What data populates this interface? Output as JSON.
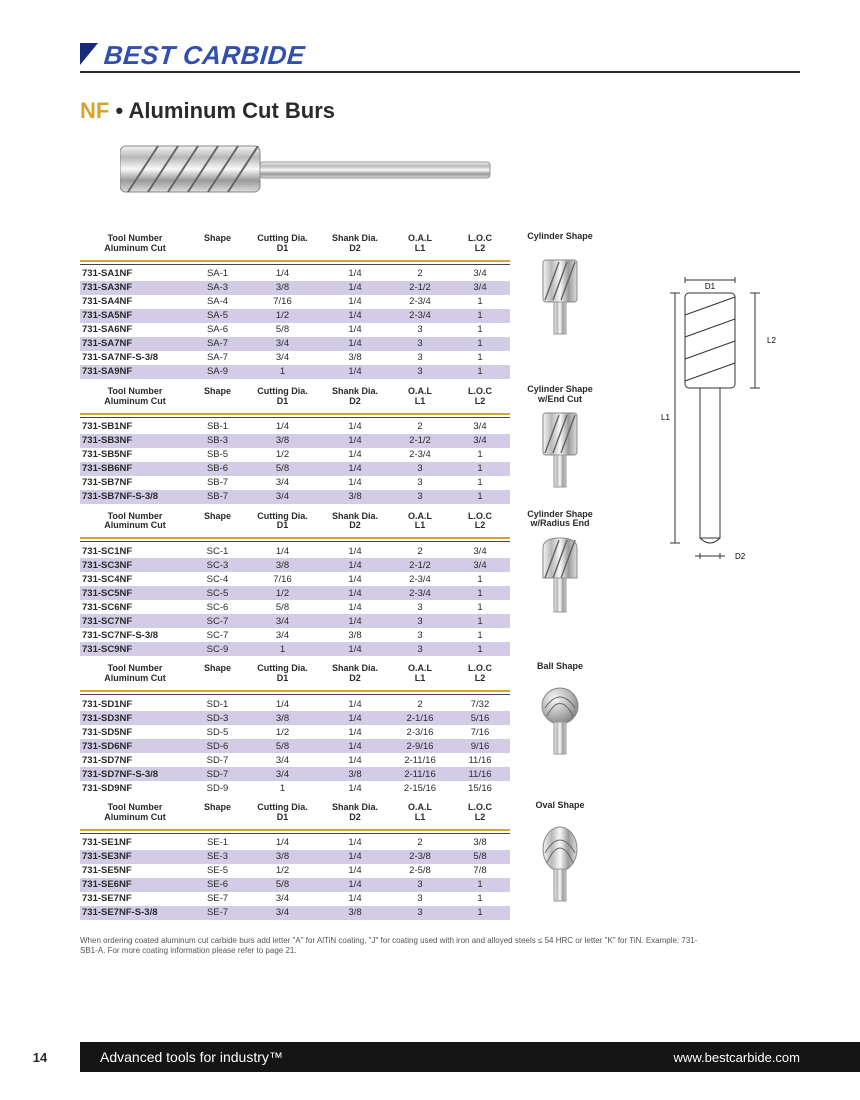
{
  "brand": "BEST CARBIDE",
  "section": {
    "prefix": "NF",
    "bullet": " • ",
    "title": "Aluminum Cut Burs"
  },
  "columns": {
    "c1a": "Tool Number",
    "c1b": "Aluminum Cut",
    "c2": "Shape",
    "c3a": "Cutting Dia.",
    "c3b": "D1",
    "c4a": "Shank Dia.",
    "c4b": "D2",
    "c5a": "O.A.L",
    "c5b": "L1",
    "c6a": "L.O.C",
    "c6b": "L2"
  },
  "shapeLabels": {
    "sa": "Cylinder Shape",
    "sb": "Cylinder Shape w/End Cut",
    "sc": "Cylinder Shape w/Radius End",
    "sd": "Ball Shape",
    "se": "Oval Shape"
  },
  "tables": {
    "sa": [
      [
        "731-SA1NF",
        "SA-1",
        "1/4",
        "1/4",
        "2",
        "3/4"
      ],
      [
        "731-SA3NF",
        "SA-3",
        "3/8",
        "1/4",
        "2-1/2",
        "3/4"
      ],
      [
        "731-SA4NF",
        "SA-4",
        "7/16",
        "1/4",
        "2-3/4",
        "1"
      ],
      [
        "731-SA5NF",
        "SA-5",
        "1/2",
        "1/4",
        "2-3/4",
        "1"
      ],
      [
        "731-SA6NF",
        "SA-6",
        "5/8",
        "1/4",
        "3",
        "1"
      ],
      [
        "731-SA7NF",
        "SA-7",
        "3/4",
        "1/4",
        "3",
        "1"
      ],
      [
        "731-SA7NF-S-3/8",
        "SA-7",
        "3/4",
        "3/8",
        "3",
        "1"
      ],
      [
        "731-SA9NF",
        "SA-9",
        "1",
        "1/4",
        "3",
        "1"
      ]
    ],
    "sb": [
      [
        "731-SB1NF",
        "SB-1",
        "1/4",
        "1/4",
        "2",
        "3/4"
      ],
      [
        "731-SB3NF",
        "SB-3",
        "3/8",
        "1/4",
        "2-1/2",
        "3/4"
      ],
      [
        "731-SB5NF",
        "SB-5",
        "1/2",
        "1/4",
        "2-3/4",
        "1"
      ],
      [
        "731-SB6NF",
        "SB-6",
        "5/8",
        "1/4",
        "3",
        "1"
      ],
      [
        "731-SB7NF",
        "SB-7",
        "3/4",
        "1/4",
        "3",
        "1"
      ],
      [
        "731-SB7NF-S-3/8",
        "SB-7",
        "3/4",
        "3/8",
        "3",
        "1"
      ]
    ],
    "sc": [
      [
        "731-SC1NF",
        "SC-1",
        "1/4",
        "1/4",
        "2",
        "3/4"
      ],
      [
        "731-SC3NF",
        "SC-3",
        "3/8",
        "1/4",
        "2-1/2",
        "3/4"
      ],
      [
        "731-SC4NF",
        "SC-4",
        "7/16",
        "1/4",
        "2-3/4",
        "1"
      ],
      [
        "731-SC5NF",
        "SC-5",
        "1/2",
        "1/4",
        "2-3/4",
        "1"
      ],
      [
        "731-SC6NF",
        "SC-6",
        "5/8",
        "1/4",
        "3",
        "1"
      ],
      [
        "731-SC7NF",
        "SC-7",
        "3/4",
        "1/4",
        "3",
        "1"
      ],
      [
        "731-SC7NF-S-3/8",
        "SC-7",
        "3/4",
        "3/8",
        "3",
        "1"
      ],
      [
        "731-SC9NF",
        "SC-9",
        "1",
        "1/4",
        "3",
        "1"
      ]
    ],
    "sd": [
      [
        "731-SD1NF",
        "SD-1",
        "1/4",
        "1/4",
        "2",
        "7/32"
      ],
      [
        "731-SD3NF",
        "SD-3",
        "3/8",
        "1/4",
        "2-1/16",
        "5/16"
      ],
      [
        "731-SD5NF",
        "SD-5",
        "1/2",
        "1/4",
        "2-3/16",
        "7/16"
      ],
      [
        "731-SD6NF",
        "SD-6",
        "5/8",
        "1/4",
        "2-9/16",
        "9/16"
      ],
      [
        "731-SD7NF",
        "SD-7",
        "3/4",
        "1/4",
        "2-11/16",
        "11/16"
      ],
      [
        "731-SD7NF-S-3/8",
        "SD-7",
        "3/4",
        "3/8",
        "2-11/16",
        "11/16"
      ],
      [
        "731-SD9NF",
        "SD-9",
        "1",
        "1/4",
        "2-15/16",
        "15/16"
      ]
    ],
    "se": [
      [
        "731-SE1NF",
        "SE-1",
        "1/4",
        "1/4",
        "2",
        "3/8"
      ],
      [
        "731-SE3NF",
        "SE-3",
        "3/8",
        "1/4",
        "2-3/8",
        "5/8"
      ],
      [
        "731-SE5NF",
        "SE-5",
        "1/2",
        "1/4",
        "2-5/8",
        "7/8"
      ],
      [
        "731-SE6NF",
        "SE-6",
        "5/8",
        "1/4",
        "3",
        "1"
      ],
      [
        "731-SE7NF",
        "SE-7",
        "3/4",
        "1/4",
        "3",
        "1"
      ],
      [
        "731-SE7NF-S-3/8",
        "SE-7",
        "3/4",
        "3/8",
        "3",
        "1"
      ]
    ]
  },
  "diagram": {
    "d1": "D1",
    "d2": "D2",
    "l1": "L1",
    "l2": "L2"
  },
  "footnote": "When ordering coated aluminum cut carbide burs add letter \"A\" for AlTiN coating, \"J\" for coating used with iron and alloyed steels ≤ 54 HRC or letter \"K\" for TiN. Example: 731-SB1-A.  For more coating information please refer to page 21.",
  "footer": {
    "page": "14",
    "tagline": "Advanced tools for industry™",
    "url": "www.bestcarbide.com"
  },
  "colors": {
    "brand_blue": "#3050b0",
    "gold": "#d4a530",
    "row_alt": "#d3cce6",
    "text": "#2a2a2a",
    "footer_bg": "#151515"
  }
}
